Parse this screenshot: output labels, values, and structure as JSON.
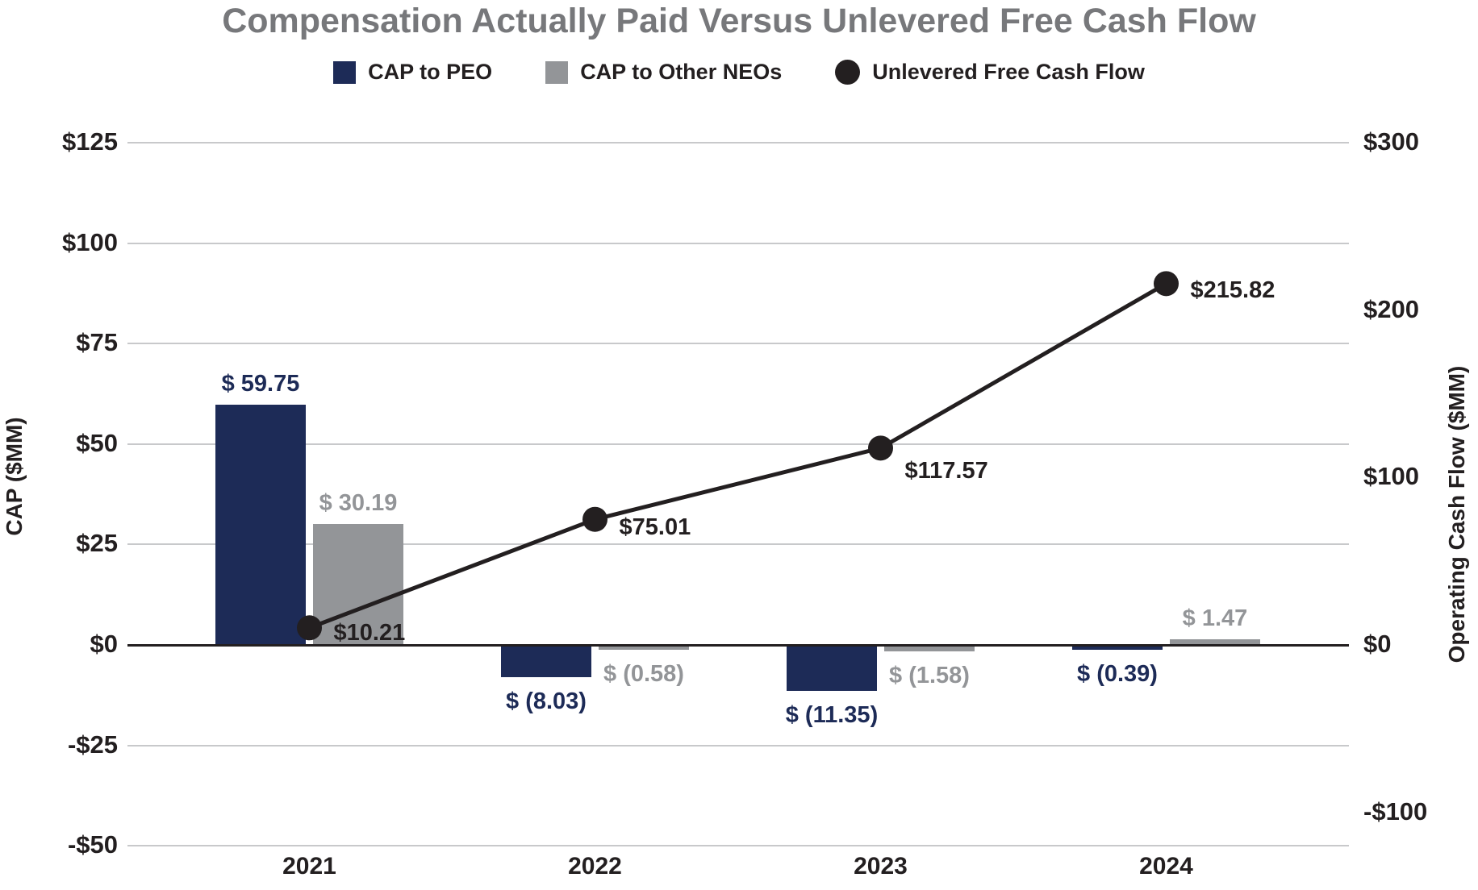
{
  "title": {
    "text": "Compensation Actually Paid Versus Unlevered Free Cash Flow",
    "color": "#77787B"
  },
  "legend": {
    "items": [
      {
        "label": "CAP to PEO",
        "marker": "square",
        "color": "#1D2B57"
      },
      {
        "label": "CAP to Other NEOs",
        "marker": "square",
        "color": "#939598"
      },
      {
        "label": "Unlevered Free Cash Flow",
        "marker": "circle",
        "color": "#231F20"
      }
    ]
  },
  "left_axis": {
    "title": "CAP ($MM)",
    "ticks": [
      {
        "label": "$125",
        "value": 125
      },
      {
        "label": "$100",
        "value": 100
      },
      {
        "label": "$75",
        "value": 75
      },
      {
        "label": "$50",
        "value": 50
      },
      {
        "label": "$25",
        "value": 25
      },
      {
        "label": "$0",
        "value": 0
      },
      {
        "label": "-$25",
        "value": -25
      },
      {
        "label": "-$50",
        "value": -50
      }
    ]
  },
  "right_axis": {
    "title": "Operating Cash Flow ($MM)",
    "ticks": [
      {
        "label": "$300",
        "value": 300
      },
      {
        "label": "$200",
        "value": 200
      },
      {
        "label": "$100",
        "value": 100
      },
      {
        "label": "$0",
        "value": 0
      },
      {
        "label": "-$100",
        "value": -100
      }
    ]
  },
  "chart_data": {
    "type": "combo-bar-line",
    "categories": [
      "2021",
      "2022",
      "2023",
      "2024"
    ],
    "series": [
      {
        "name": "CAP to PEO",
        "type": "bar",
        "axis": "left",
        "color": "#1D2B57",
        "values": [
          59.75,
          -8.03,
          -11.35,
          -0.39
        ],
        "data_labels": [
          "$ 59.75",
          "$ (8.03)",
          "$ (11.35)",
          "$ (0.39)"
        ]
      },
      {
        "name": "CAP to Other NEOs",
        "type": "bar",
        "axis": "left",
        "color": "#939598",
        "values": [
          30.19,
          -0.58,
          -1.58,
          1.47
        ],
        "data_labels": [
          "$ 30.19",
          "$ (0.58)",
          "$ (1.58)",
          "$ 1.47"
        ]
      },
      {
        "name": "Unlevered Free Cash Flow",
        "type": "line",
        "axis": "right",
        "color": "#231F20",
        "values": [
          10.21,
          75.01,
          117.57,
          215.82
        ],
        "data_labels": [
          "$10.21",
          "$75.01",
          "$117.57",
          "$215.82"
        ]
      }
    ],
    "left_ylim": [
      -50,
      125
    ],
    "right_ylim": [
      -100,
      300
    ],
    "grid": "horizontal",
    "grid_color": "#C8C9CB",
    "zero_line_color": "#231F20",
    "legend_position": "top",
    "background": "#FFFFFF"
  }
}
